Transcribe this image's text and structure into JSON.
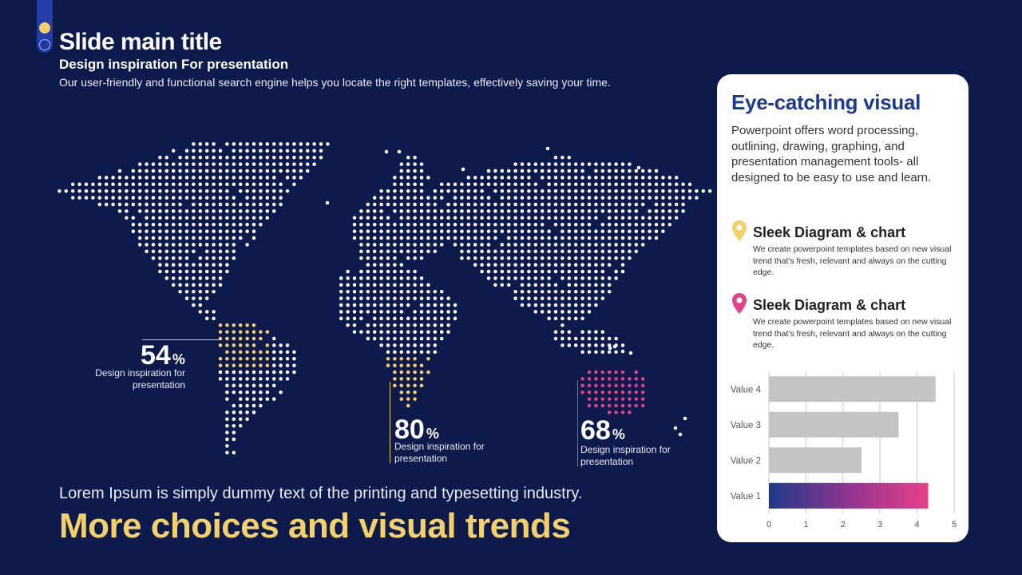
{
  "slide": {
    "title": "Slide main title",
    "subtitle": "Design inspiration For presentation",
    "intro": "Our user-friendly and functional search engine helps you locate the right templates, effectively saving your time."
  },
  "stats": [
    {
      "value": "54",
      "unit": "%",
      "desc_line1": "Design inspiration for",
      "desc_line2": "presentation",
      "color": "#f2d06b"
    },
    {
      "value": "80",
      "unit": "%",
      "desc_line1": "Design inspiration for",
      "desc_line2": "presentation",
      "color": "#f2d06b"
    },
    {
      "value": "68",
      "unit": "%",
      "desc_line1": "Design inspiration for",
      "desc_line2": "presentation",
      "color": "#e0428a"
    }
  ],
  "bottom": {
    "text": "Lorem Ipsum is simply dummy text of the printing and typesetting industry.",
    "title": "More choices and visual trends"
  },
  "card": {
    "title": "Eye-catching visual",
    "desc": "Powerpoint offers word processing, outlining, drawing, graphing, and presentation management tools- all designed to be easy to use and learn.",
    "features": [
      {
        "title": "Sleek Diagram & chart",
        "desc": "We create powerpoint templates based on new visual trend that's fresh, relevant and always on the cutting edge.",
        "pin_color": "#f2d06b",
        "icon": "map-pin-icon"
      },
      {
        "title": "Sleek Diagram & chart",
        "desc": "We create powerpoint templates based on new visual trend that's fresh, relevant and always on the cutting edge.",
        "pin_color": "#e0428a",
        "icon": "map-pin-icon"
      }
    ]
  },
  "colors": {
    "background": "#0e1a4b",
    "accent_yellow": "#f2d06b",
    "accent_pink": "#e0428a",
    "accent_blue": "#1e3a8a",
    "bar_gray": "#c4c4c4"
  },
  "chart_data": {
    "type": "bar",
    "orientation": "horizontal",
    "categories": [
      "Value 4",
      "Value 3",
      "Value 2",
      "Value 1"
    ],
    "values": [
      4.5,
      3.5,
      2.5,
      4.3
    ],
    "xlim": [
      0,
      5
    ],
    "xticks": [
      "0",
      "1",
      "2",
      "3",
      "4",
      "5"
    ],
    "grid": true,
    "highlight": "Value 1"
  }
}
